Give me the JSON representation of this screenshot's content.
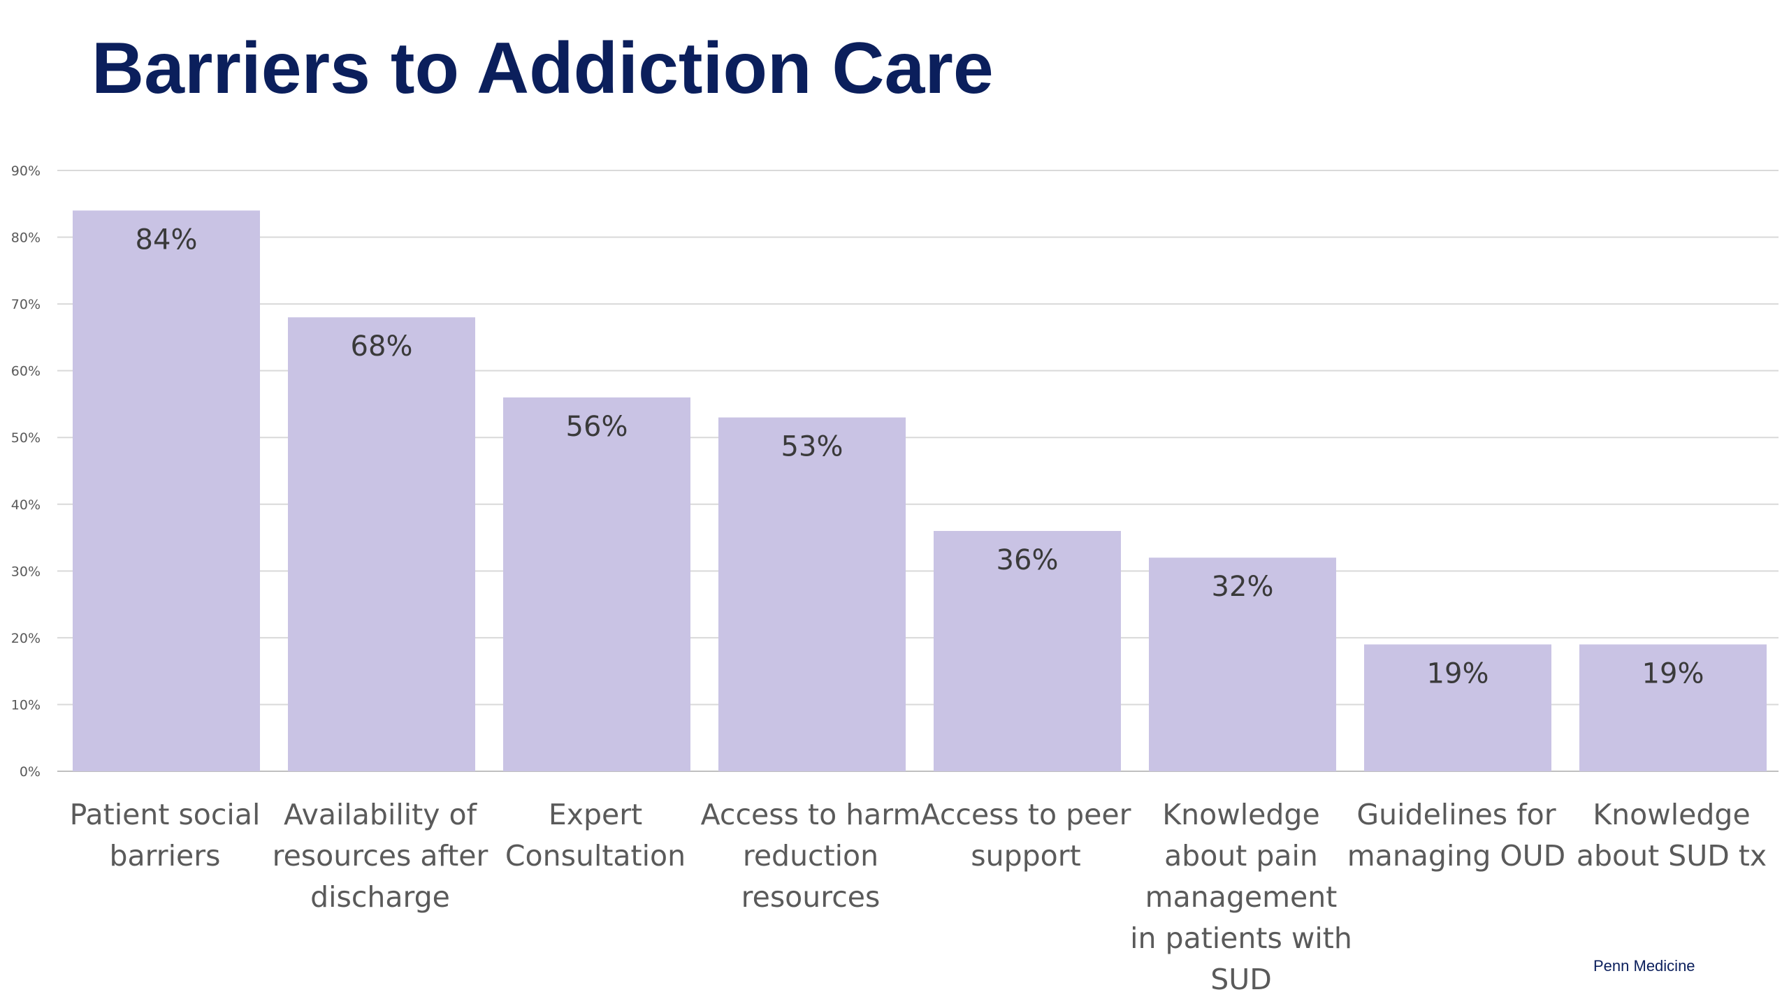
{
  "slide": {
    "title": "Barriers to Addiction Care",
    "footer": "Penn Medicine"
  },
  "colors": {
    "title": "#0b1f5c",
    "bar": "#c9c3e4",
    "grid": "#d9d9d9",
    "tick": "#595959",
    "data_label": "#3a3a3a",
    "category_label": "#5a5a5a"
  },
  "chart_data": {
    "type": "bar",
    "title": "",
    "xlabel": "",
    "ylabel": "",
    "ylim": [
      0,
      90
    ],
    "yticks": [
      "0%",
      "10%",
      "20%",
      "30%",
      "40%",
      "50%",
      "60%",
      "70%",
      "80%",
      "90%"
    ],
    "grid": true,
    "legend": "none",
    "categories": [
      "Patient social barriers",
      "Availability of resources after discharge",
      "Expert Consultation",
      "Access to harm reduction resources",
      "Access to peer support",
      "Knowledge about pain management in patients with SUD",
      "Guidelines for managing OUD",
      "Knowledge about SUD tx"
    ],
    "category_lines": [
      [
        "Patient social",
        "barriers"
      ],
      [
        "Availability of",
        "resources after",
        "discharge"
      ],
      [
        "Expert",
        "Consultation"
      ],
      [
        "Access to harm",
        "reduction",
        "resources"
      ],
      [
        "Access to peer",
        "support"
      ],
      [
        "Knowledge",
        "about pain",
        "management",
        "in patients with",
        "SUD"
      ],
      [
        "Guidelines for",
        "managing OUD"
      ],
      [
        "Knowledge",
        "about SUD tx"
      ]
    ],
    "values": [
      84,
      68,
      56,
      53,
      36,
      32,
      19,
      19
    ],
    "data_labels": [
      "84%",
      "68%",
      "56%",
      "53%",
      "36%",
      "32%",
      "19%",
      "19%"
    ]
  }
}
